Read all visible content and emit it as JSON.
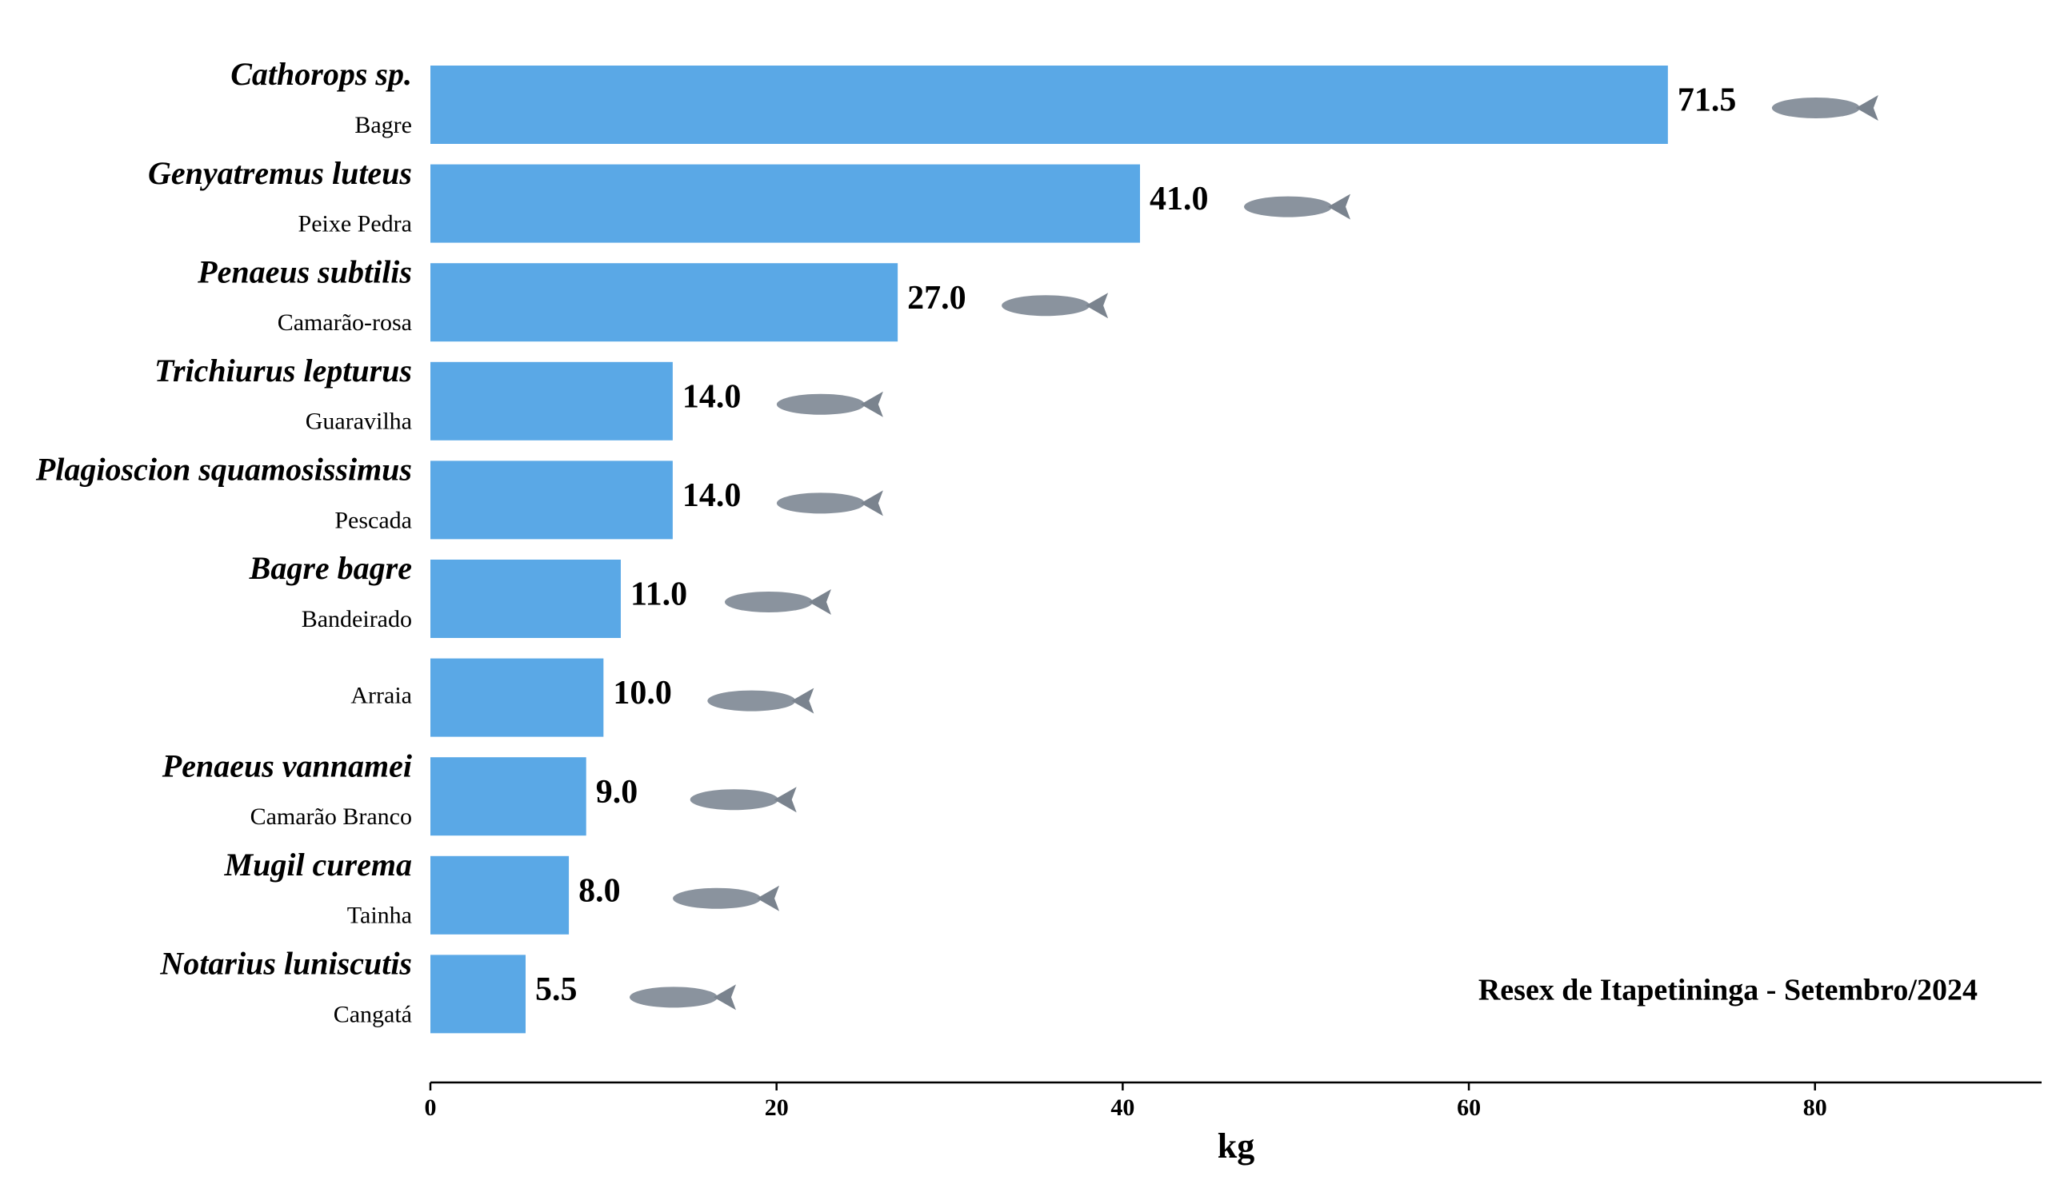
{
  "chart_data": {
    "type": "bar",
    "orientation": "horizontal",
    "species": [
      "Cathorops sp.",
      "Genyatremus luteus",
      "Penaeus subtilis",
      "Trichiurus lepturus",
      "Plagioscion squamosissimus",
      "Bagre bagre",
      null,
      "Penaeus vannamei",
      "Mugil curema",
      "Notarius luniscutis"
    ],
    "categories": [
      "Bagre",
      "Peixe Pedra",
      "Camarão-rosa",
      "Guaravilha",
      "Pescada",
      "Bandeirado",
      "Arraia",
      "Camarão Branco",
      "Tainha",
      "Cangatá"
    ],
    "values": [
      71.5,
      41.0,
      27.0,
      14.0,
      14.0,
      11.0,
      10.0,
      9.0,
      8.0,
      5.5
    ],
    "value_labels": [
      "71.5",
      "41.0",
      "27.0",
      "14.0",
      "14.0",
      "11.0",
      "10.0",
      "9.0",
      "8.0",
      "5.5"
    ],
    "color": "#5aa8e6",
    "xlim": [
      0,
      93
    ],
    "xticks": [
      0,
      20,
      40,
      60,
      80
    ],
    "x_label": "kg",
    "annotation": "Resex de Itapetininga - Setembro/2024",
    "grid": false
  }
}
